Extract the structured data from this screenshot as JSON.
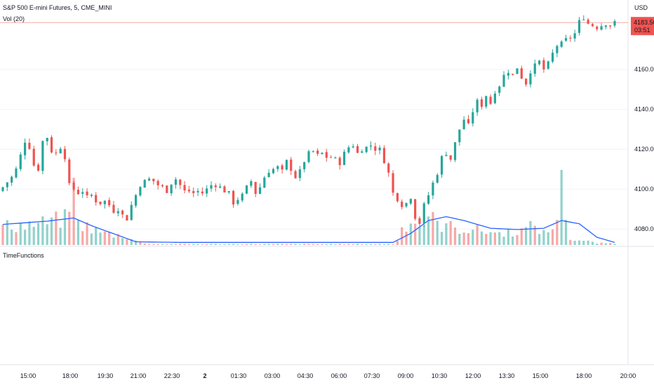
{
  "header": {
    "symbol_title": "S&P 500 E-mini Futures, 5, CME_MINI",
    "volume_indicator": "Vol (20)",
    "lower_pane_title": "TimeFunctions"
  },
  "price_axis": {
    "currency": "USD",
    "ticks": [
      "4160.00",
      "4140.00",
      "4120.00",
      "4100.00",
      "4080.00"
    ]
  },
  "last_price_badge": {
    "price": "4183.50",
    "countdown": "03:51",
    "color": "#f05350"
  },
  "colors": {
    "up": "#26a69a",
    "down": "#ef5350",
    "volume_ma": "#2962ff",
    "grid": "#f0f3fa",
    "price_line": "#f7a9a7"
  },
  "chart_data": {
    "type": "candlestick",
    "timeframe": "5",
    "ylim": [
      4072,
      4192
    ],
    "yticks": [
      4080,
      4100,
      4120,
      4140,
      4160
    ],
    "xticks": [
      "15:00",
      "18:00",
      "19:30",
      "21:00",
      "22:30",
      "2",
      "01:30",
      "03:00",
      "04:30",
      "06:00",
      "07:30",
      "09:00",
      "10:30",
      "12:00",
      "13:30",
      "15:00",
      "18:00",
      "20:00"
    ],
    "last_price": 4183.5,
    "close_path": [
      [
        0,
        4101
      ],
      [
        2,
        4106
      ],
      [
        3,
        4110
      ],
      [
        4,
        4117
      ],
      [
        5,
        4124
      ],
      [
        6,
        4121
      ],
      [
        7,
        4112
      ],
      [
        8,
        4110
      ],
      [
        9,
        4124
      ],
      [
        10,
        4126
      ],
      [
        11,
        4119
      ],
      [
        12,
        4118
      ],
      [
        13,
        4121
      ],
      [
        14,
        4116
      ],
      [
        15,
        4102
      ],
      [
        16,
        4100
      ],
      [
        17,
        4098
      ],
      [
        18,
        4099
      ],
      [
        19,
        4096
      ],
      [
        20,
        4097
      ],
      [
        21,
        4094
      ],
      [
        22,
        4093
      ],
      [
        23,
        4094
      ],
      [
        24,
        4092
      ],
      [
        25,
        4089
      ],
      [
        26,
        4090
      ],
      [
        27,
        4087
      ],
      [
        28,
        4085
      ],
      [
        29,
        4092
      ],
      [
        30,
        4097
      ],
      [
        31,
        4102
      ],
      [
        32,
        4104
      ],
      [
        33,
        4105
      ],
      [
        34,
        4104
      ],
      [
        35,
        4102
      ],
      [
        36,
        4101
      ],
      [
        37,
        4099
      ],
      [
        38,
        4103
      ],
      [
        39,
        4105
      ],
      [
        40,
        4102
      ],
      [
        41,
        4099
      ],
      [
        42,
        4099
      ],
      [
        43,
        4098
      ],
      [
        44,
        4099
      ],
      [
        45,
        4098
      ],
      [
        46,
        4100
      ],
      [
        47,
        4102
      ],
      [
        48,
        4102
      ],
      [
        49,
        4101
      ],
      [
        50,
        4099
      ],
      [
        51,
        4098
      ],
      [
        52,
        4093
      ],
      [
        53,
        4095
      ],
      [
        54,
        4097
      ],
      [
        55,
        4101
      ],
      [
        56,
        4104
      ],
      [
        57,
        4098
      ],
      [
        58,
        4101
      ],
      [
        59,
        4106
      ],
      [
        60,
        4109
      ],
      [
        61,
        4110
      ],
      [
        62,
        4111
      ],
      [
        63,
        4109
      ],
      [
        64,
        4114
      ],
      [
        65,
        4110
      ],
      [
        66,
        4106
      ],
      [
        67,
        4109
      ],
      [
        68,
        4114
      ],
      [
        69,
        4118
      ],
      [
        70,
        4119
      ],
      [
        71,
        4117
      ],
      [
        72,
        4118
      ],
      [
        73,
        4116
      ],
      [
        74,
        4116
      ],
      [
        75,
        4115
      ],
      [
        76,
        4113
      ],
      [
        77,
        4118
      ],
      [
        78,
        4121
      ],
      [
        79,
        4122
      ],
      [
        80,
        4118
      ],
      [
        81,
        4120
      ],
      [
        82,
        4121
      ],
      [
        83,
        4122
      ],
      [
        84,
        4120
      ],
      [
        85,
        4120
      ],
      [
        86,
        4114
      ],
      [
        87,
        4108
      ],
      [
        88,
        4098
      ],
      [
        89,
        4095
      ],
      [
        90,
        4092
      ],
      [
        91,
        4093
      ],
      [
        92,
        4096
      ],
      [
        93,
        4086
      ],
      [
        94,
        4083
      ],
      [
        95,
        4092
      ],
      [
        96,
        4097
      ],
      [
        97,
        4103
      ],
      [
        98,
        4108
      ],
      [
        99,
        4116
      ],
      [
        100,
        4118
      ],
      [
        101,
        4115
      ],
      [
        102,
        4123
      ],
      [
        103,
        4130
      ],
      [
        104,
        4135
      ],
      [
        105,
        4132
      ],
      [
        106,
        4139
      ],
      [
        107,
        4144
      ],
      [
        108,
        4142
      ],
      [
        109,
        4147
      ],
      [
        110,
        4143
      ],
      [
        111,
        4149
      ],
      [
        112,
        4152
      ],
      [
        113,
        4157
      ],
      [
        114,
        4159
      ],
      [
        115,
        4157
      ],
      [
        116,
        4161
      ],
      [
        117,
        4156
      ],
      [
        118,
        4153
      ],
      [
        119,
        4159
      ],
      [
        120,
        4162
      ],
      [
        121,
        4164
      ],
      [
        122,
        4160
      ],
      [
        123,
        4163
      ],
      [
        124,
        4168
      ],
      [
        125,
        4172
      ],
      [
        126,
        4173
      ],
      [
        127,
        4175
      ],
      [
        128,
        4176
      ],
      [
        129,
        4178
      ],
      [
        130,
        4184
      ],
      [
        131,
        4186
      ],
      [
        132,
        4183
      ],
      [
        133,
        4182
      ],
      [
        134,
        4181
      ],
      [
        135,
        4182
      ],
      [
        136,
        4183
      ],
      [
        137,
        4182
      ],
      [
        138,
        4183.5
      ]
    ],
    "volume_profile": [
      [
        0,
        0.32
      ],
      [
        8,
        0.36
      ],
      [
        14,
        0.45
      ],
      [
        16,
        0.95
      ],
      [
        17,
        0.38
      ],
      [
        22,
        0.22
      ],
      [
        28,
        0.14
      ],
      [
        31,
        0.04
      ],
      [
        34,
        0.015
      ],
      [
        88,
        0.015
      ],
      [
        89,
        0.08
      ],
      [
        90,
        0.28
      ],
      [
        92,
        0.45
      ],
      [
        94,
        0.32
      ],
      [
        96,
        0.5
      ],
      [
        98,
        0.36
      ],
      [
        103,
        0.28
      ],
      [
        108,
        0.25
      ],
      [
        112,
        0.2
      ],
      [
        118,
        0.26
      ],
      [
        120,
        0.35
      ],
      [
        122,
        0.2
      ],
      [
        124,
        0.28
      ],
      [
        125,
        0.55
      ],
      [
        126,
        1.0
      ],
      [
        127,
        0.6
      ],
      [
        128,
        0.1
      ],
      [
        132,
        0.06
      ],
      [
        134,
        0.03
      ],
      [
        138,
        0.03
      ]
    ],
    "volume_ma_profile": [
      [
        0,
        0.32
      ],
      [
        10,
        0.37
      ],
      [
        16,
        0.42
      ],
      [
        20,
        0.3
      ],
      [
        26,
        0.15
      ],
      [
        30,
        0.05
      ],
      [
        40,
        0.04
      ],
      [
        60,
        0.04
      ],
      [
        80,
        0.04
      ],
      [
        88,
        0.04
      ],
      [
        92,
        0.18
      ],
      [
        96,
        0.38
      ],
      [
        100,
        0.44
      ],
      [
        104,
        0.38
      ],
      [
        110,
        0.26
      ],
      [
        116,
        0.24
      ],
      [
        122,
        0.26
      ],
      [
        126,
        0.38
      ],
      [
        130,
        0.33
      ],
      [
        134,
        0.12
      ],
      [
        138,
        0.04
      ]
    ]
  }
}
